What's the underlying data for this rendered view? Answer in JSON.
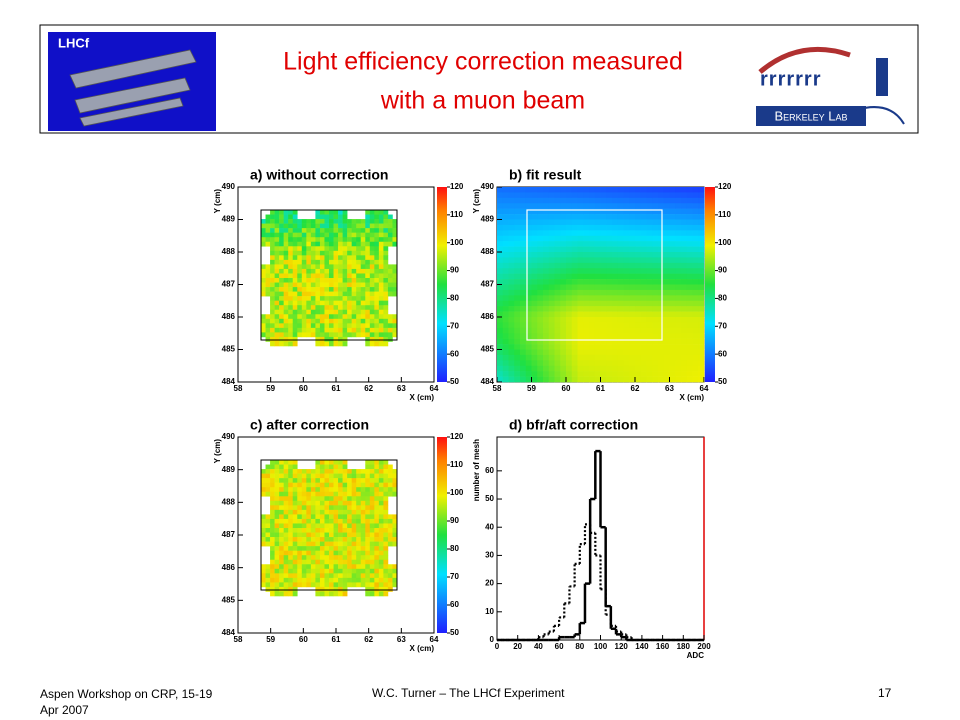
{
  "header": {
    "title": [
      "Light efficiency correction measured",
      "with a muon  beam"
    ],
    "logo_left": "LHCf",
    "logo_right": "Berkeley Lab"
  },
  "panels": [
    {
      "type": "heatmap",
      "title": "a) without correction",
      "x_label": "X (cm)",
      "y_label": "Y (cm)",
      "xlim": [
        58,
        64
      ],
      "ylim": [
        484,
        490
      ],
      "zlim": [
        50,
        120
      ],
      "xticks": [
        58,
        59,
        60,
        61,
        62,
        63,
        64
      ],
      "yticks": [
        484,
        485,
        486,
        487,
        488,
        489,
        490
      ],
      "zticks": [
        50,
        60,
        70,
        80,
        90,
        100,
        110,
        120
      ]
    },
    {
      "type": "fit",
      "title": "b) fit result",
      "x_label": "X (cm)",
      "y_label": "Y (cm)",
      "xlim": [
        58,
        64
      ],
      "ylim": [
        484,
        490
      ],
      "zlim": [
        50,
        120
      ],
      "xticks": [
        58,
        59,
        60,
        61,
        62,
        63,
        64
      ],
      "yticks": [
        484,
        485,
        486,
        487,
        488,
        489,
        490
      ],
      "zticks": [
        50,
        60,
        70,
        80,
        90,
        100,
        110,
        120
      ]
    },
    {
      "type": "heatmap_corrected",
      "title": "c) after correction",
      "x_label": "X (cm)",
      "y_label": "Y (cm)",
      "xlim": [
        58,
        64
      ],
      "ylim": [
        484,
        490
      ],
      "zlim": [
        50,
        120
      ],
      "xticks": [
        58,
        59,
        60,
        61,
        62,
        63,
        64
      ],
      "yticks": [
        484,
        485,
        486,
        487,
        488,
        489,
        490
      ],
      "zticks": [
        50,
        60,
        70,
        80,
        90,
        100,
        110,
        120
      ]
    },
    {
      "type": "histogram",
      "title": "d) bfr/aft correction",
      "x_label": "ADC",
      "y_label": "number of mesh",
      "xlim": [
        0,
        200
      ],
      "ylim": [
        0,
        72
      ],
      "xticks": [
        0,
        20,
        40,
        60,
        80,
        100,
        120,
        140,
        160,
        180,
        200
      ],
      "yticks": [
        0,
        10,
        20,
        30,
        40,
        50,
        60
      ],
      "bins": [
        0,
        5,
        10,
        15,
        20,
        25,
        30,
        35,
        40,
        45,
        50,
        55,
        60,
        65,
        70,
        75,
        80,
        85,
        90,
        95,
        100,
        105,
        110,
        115,
        120,
        125,
        130,
        135,
        140,
        145,
        150,
        155,
        160,
        165,
        170,
        175,
        180,
        185,
        190,
        195,
        200
      ],
      "series": [
        {
          "color": "#000000",
          "style": "solid",
          "values": [
            0,
            0,
            0,
            0,
            0,
            0,
            0,
            0,
            0,
            0,
            0,
            0,
            1,
            1,
            1,
            2,
            6,
            20,
            50,
            67,
            40,
            12,
            4,
            2,
            1,
            0,
            0,
            0,
            0,
            0,
            0,
            0,
            0,
            0,
            0,
            0,
            0,
            0,
            0,
            0
          ]
        },
        {
          "color": "#000000",
          "style": "dotted",
          "values": [
            0,
            0,
            0,
            0,
            0,
            0,
            0,
            0,
            1,
            2,
            3,
            5,
            8,
            13,
            19,
            27,
            34,
            41,
            38,
            30,
            18,
            9,
            5,
            3,
            2,
            1,
            0,
            0,
            0,
            0,
            0,
            0,
            0,
            0,
            0,
            0,
            0,
            0,
            0,
            0
          ]
        }
      ]
    }
  ],
  "footer": {
    "left": "Aspen Workshop on CRP, 15-19 Apr 2007",
    "center": "W.C. Turner – The LHCf Experiment",
    "right": "17"
  }
}
